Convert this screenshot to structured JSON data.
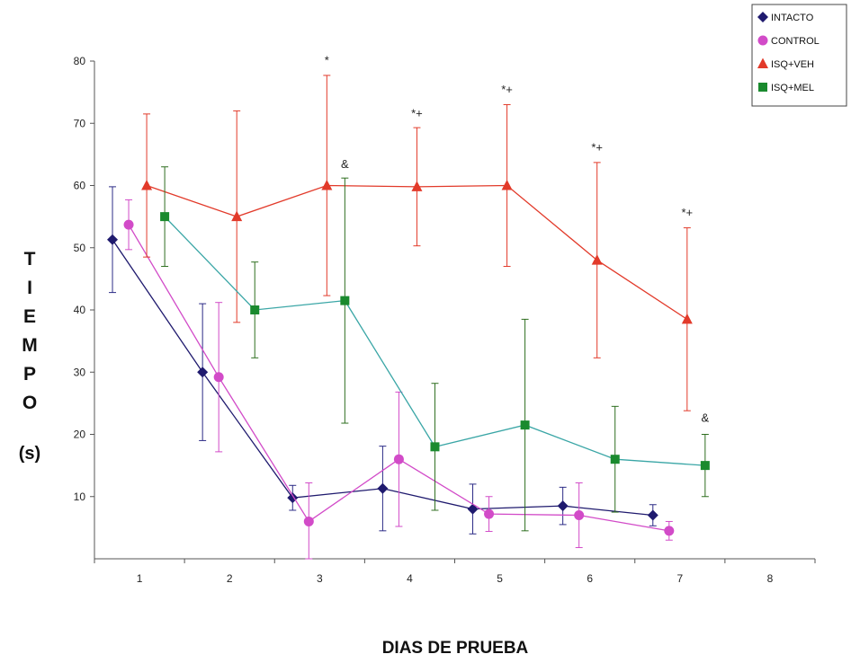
{
  "chart_data": {
    "type": "line",
    "xlabel": "DIAS DE PRUEBA",
    "ylabel_chars": [
      "T",
      "I",
      "E",
      "M",
      "P",
      "O"
    ],
    "ylabel_unit": "(s)",
    "ylim": [
      0,
      80
    ],
    "yticks": [
      10,
      20,
      30,
      40,
      50,
      60,
      70,
      80
    ],
    "xlim": [
      0.5,
      8.5
    ],
    "xticks": [
      1,
      2,
      3,
      4,
      5,
      6,
      7,
      8
    ],
    "grid": false,
    "legend_position": "top-right",
    "series": [
      {
        "name": "INTACTO",
        "color": "#1f1a6e",
        "marker": "diamond",
        "x": [
          0.7,
          1.7,
          2.7,
          3.7,
          4.7,
          5.7,
          6.7
        ],
        "y": [
          51.3,
          30.0,
          9.8,
          11.3,
          8.0,
          8.5,
          7.0
        ],
        "err": [
          8.5,
          11.0,
          2.0,
          6.8,
          4.0,
          3.0,
          1.7
        ],
        "errcolor": "#2b2a86"
      },
      {
        "name": "CONTROL",
        "color": "#d24bc8",
        "marker": "circle",
        "x": [
          0.88,
          1.88,
          2.88,
          3.88,
          4.88,
          5.88,
          6.88
        ],
        "y": [
          53.7,
          29.2,
          6.0,
          16.0,
          7.2,
          7.0,
          4.5
        ],
        "err": [
          4.0,
          12.0,
          6.2,
          10.8,
          2.8,
          5.2,
          1.5
        ],
        "errcolor": "#d24bc8"
      },
      {
        "name": "ISQ+VEH",
        "color": "#e23a2a",
        "marker": "triangle",
        "x": [
          1.08,
          2.08,
          3.08,
          4.08,
          5.08,
          6.08,
          7.08
        ],
        "y": [
          60.0,
          55.0,
          60.0,
          59.8,
          60.0,
          48.0,
          38.5
        ],
        "err": [
          11.5,
          17.0,
          17.7,
          9.5,
          13.0,
          15.7,
          14.7
        ],
        "errcolor": "#e23a2a"
      },
      {
        "name": "ISQ+MEL",
        "color": "#1a8a2e",
        "linecolor": "#3aa6a6",
        "marker": "square",
        "x": [
          1.28,
          2.28,
          3.28,
          4.28,
          5.28,
          6.28,
          7.28
        ],
        "y": [
          55.0,
          40.0,
          41.5,
          18.0,
          21.5,
          16.0,
          15.0
        ],
        "err": [
          8.0,
          7.7,
          19.7,
          10.2,
          17.0,
          8.5,
          5.0
        ],
        "errcolor": "#2e6e1f"
      }
    ],
    "annotations": [
      {
        "text": "*",
        "x": 3.08,
        "y": 79.5
      },
      {
        "text": "&",
        "x": 3.28,
        "y": 62.8
      },
      {
        "text": "*+",
        "x": 4.08,
        "y": 71.0
      },
      {
        "text": "*+",
        "x": 5.08,
        "y": 74.8
      },
      {
        "text": "*+",
        "x": 6.08,
        "y": 65.5
      },
      {
        "text": "*+",
        "x": 7.08,
        "y": 55.0
      },
      {
        "text": "&",
        "x": 7.28,
        "y": 22.0
      }
    ]
  }
}
